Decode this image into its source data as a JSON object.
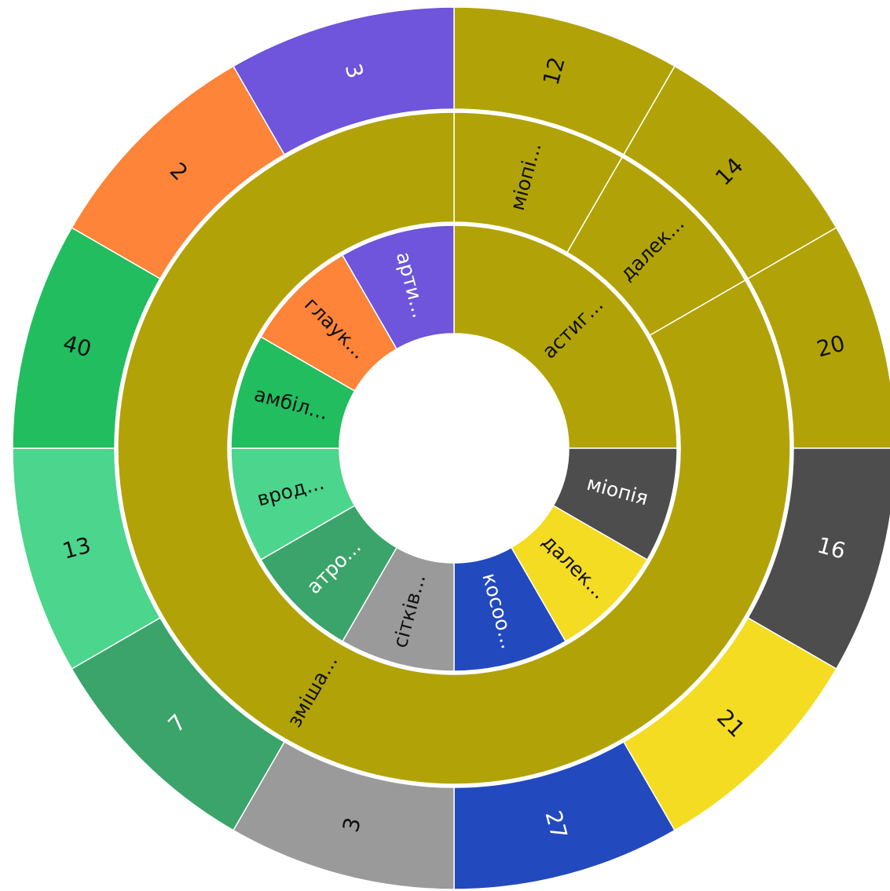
{
  "chart_data": {
    "type": "sunburst",
    "rings": [
      {
        "segments": [
          {
            "label": "астиг...",
            "color": "#b1a307",
            "size": 3
          },
          {
            "label": "міопія",
            "color": "#4d4d4d",
            "size": 1
          },
          {
            "label": "далек...",
            "color": "#f4dc22",
            "size": 1
          },
          {
            "label": "косоо...",
            "color": "#2349be",
            "size": 1
          },
          {
            "label": "сітків...",
            "color": "#9a9a9a",
            "size": 1
          },
          {
            "label": "атро...",
            "color": "#3aa46a",
            "size": 1
          },
          {
            "label": "врод...",
            "color": "#4cd58c",
            "size": 1
          },
          {
            "label": "амбіл...",
            "color": "#22bd5f",
            "size": 1
          },
          {
            "label": "глаук...",
            "color": "#fd8439",
            "size": 1
          },
          {
            "label": "арти...",
            "color": "#6e55db",
            "size": 1
          }
        ]
      },
      {
        "segments": [
          {
            "label": "міопі...",
            "color": "#b1a307",
            "size": 1
          },
          {
            "label": "далек...",
            "color": "#b1a307",
            "size": 1
          },
          {
            "label": "зміша...",
            "color": "#b1a307",
            "size": 10
          }
        ]
      },
      {
        "segments": [
          {
            "value": 12,
            "color": "#b1a307",
            "size": 1
          },
          {
            "value": 14,
            "color": "#b1a307",
            "size": 1
          },
          {
            "value": 20,
            "color": "#b1a307",
            "size": 1
          },
          {
            "value": 16,
            "color": "#4d4d4d",
            "size": 1
          },
          {
            "value": 21,
            "color": "#f4dc22",
            "size": 1
          },
          {
            "value": 27,
            "color": "#2349be",
            "size": 1
          },
          {
            "value": 3,
            "color": "#9a9a9a",
            "size": 1
          },
          {
            "value": 7,
            "color": "#3aa46a",
            "size": 1
          },
          {
            "value": 13,
            "color": "#4cd58c",
            "size": 1
          },
          {
            "value": 40,
            "color": "#22bd5f",
            "size": 1
          },
          {
            "value": 2,
            "color": "#fd8439",
            "size": 1
          },
          {
            "value": 3,
            "color": "#6e55db",
            "size": 1
          }
        ]
      }
    ]
  }
}
